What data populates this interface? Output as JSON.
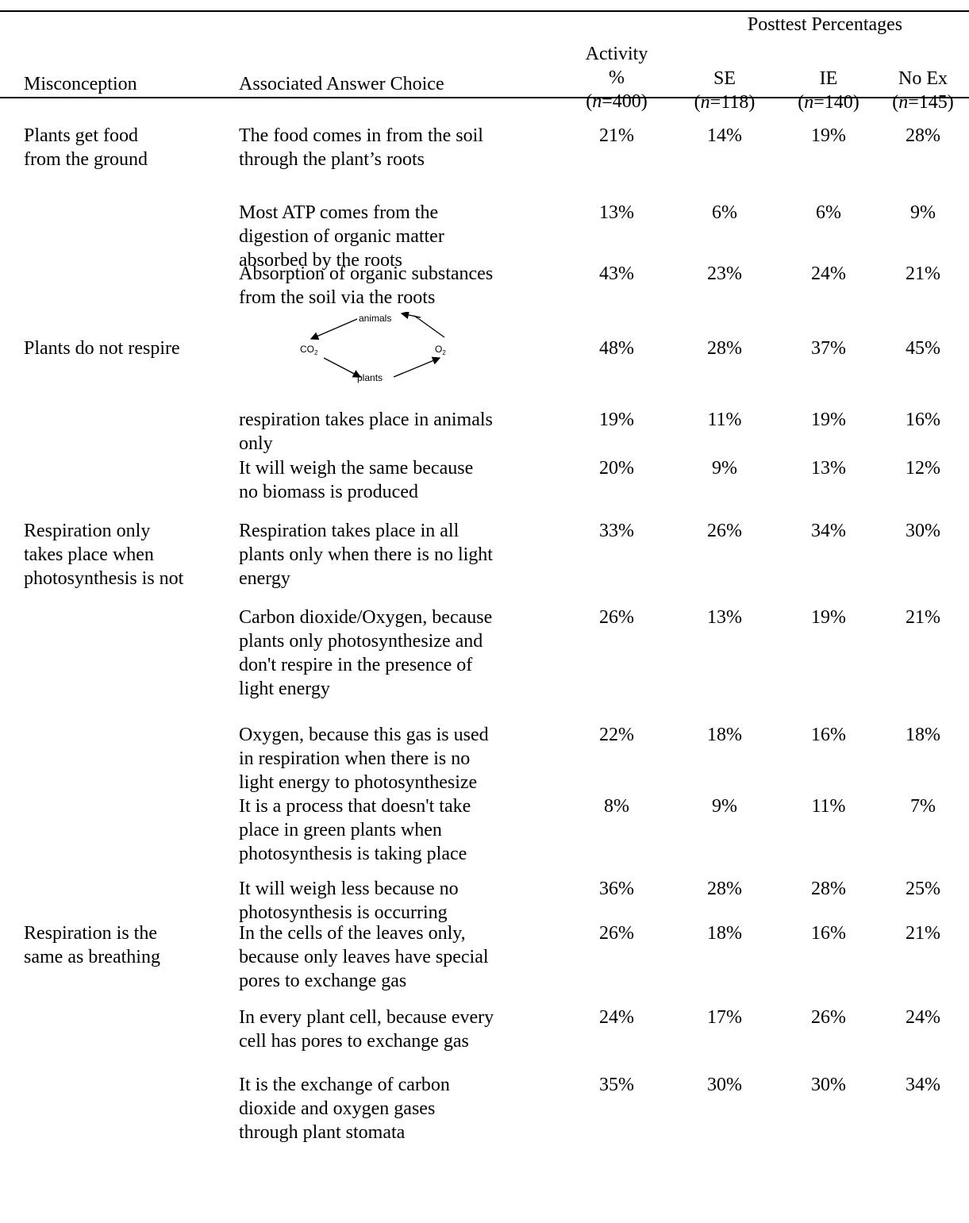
{
  "header": {
    "group_label": "Posttest Percentages",
    "misconception": "Misconception",
    "answer_choice": "Associated Answer Choice",
    "activity": {
      "line1": "Activity",
      "line2": "%",
      "n_var": "n",
      "n_val": "=400"
    },
    "se": {
      "name": "SE",
      "n_var": "n",
      "n_val": "=118"
    },
    "ie": {
      "name": "IE",
      "n_var": "n",
      "n_val": "=140"
    },
    "noex": {
      "name": "No Ex",
      "n_var": "n",
      "n_val": "=145"
    }
  },
  "diagram": {
    "animals": "animals",
    "plants": "plants",
    "co2": "CO",
    "co2_sub": "2",
    "o2": "O",
    "o2_sub": "2"
  },
  "rows": [
    {
      "misconception": [
        "Plants get food",
        "from the ground"
      ],
      "answer": [
        "The food comes in from the soil",
        "through the plant’s roots"
      ],
      "activity": "21%",
      "se": "14%",
      "ie": "19%",
      "noex": "28%"
    },
    {
      "misconception": [],
      "answer": [
        "Most ATP comes from the",
        "digestion of organic matter",
        "absorbed by the roots"
      ],
      "activity": "13%",
      "se": "6%",
      "ie": "6%",
      "noex": "9%"
    },
    {
      "misconception": [],
      "answer": [
        "Absorption of organic substances",
        "from the soil via the roots"
      ],
      "activity": "43%",
      "se": "23%",
      "ie": "24%",
      "noex": "21%"
    },
    {
      "misconception": [
        "Plants do not respire"
      ],
      "answer": [],
      "activity": "48%",
      "se": "28%",
      "ie": "37%",
      "noex": "45%"
    },
    {
      "misconception": [],
      "answer": [
        "respiration takes place in animals",
        "only"
      ],
      "activity": "19%",
      "se": "11%",
      "ie": "19%",
      "noex": "16%"
    },
    {
      "misconception": [],
      "answer": [
        "It will weigh the same because",
        "no biomass is produced"
      ],
      "activity": "20%",
      "se": "9%",
      "ie": "13%",
      "noex": "12%"
    },
    {
      "misconception": [
        "Respiration only",
        "takes place when",
        "photosynthesis is not"
      ],
      "answer": [
        "Respiration takes place in all",
        "plants only when there is no light",
        "energy"
      ],
      "activity": "33%",
      "se": "26%",
      "ie": "34%",
      "noex": "30%"
    },
    {
      "misconception": [],
      "answer": [
        "Carbon dioxide/Oxygen, because",
        "plants only photosynthesize and",
        "don't respire in the presence of",
        "light energy"
      ],
      "activity": "26%",
      "se": "13%",
      "ie": "19%",
      "noex": "21%"
    },
    {
      "misconception": [],
      "answer": [
        "Oxygen, because this gas is used",
        "in respiration when there is no",
        "light energy to photosynthesize"
      ],
      "activity": "22%",
      "se": "18%",
      "ie": "16%",
      "noex": "18%"
    },
    {
      "misconception": [],
      "answer": [
        "It is a process that doesn't take",
        "place in green plants when",
        "photosynthesis is taking place"
      ],
      "activity": "8%",
      "se": "9%",
      "ie": "11%",
      "noex": "7%"
    },
    {
      "misconception": [],
      "answer": [
        "It will weigh less because no",
        "photosynthesis is occurring"
      ],
      "activity": "36%",
      "se": "28%",
      "ie": "28%",
      "noex": "25%"
    },
    {
      "misconception": [
        "Respiration is the",
        "same as breathing"
      ],
      "answer": [
        "In the cells of the leaves only,",
        "because only leaves have special",
        "pores to exchange gas"
      ],
      "activity": "26%",
      "se": "18%",
      "ie": "16%",
      "noex": "21%"
    },
    {
      "misconception": [],
      "answer": [
        "In every plant cell, because every",
        "cell has pores to exchange gas"
      ],
      "activity": "24%",
      "se": "17%",
      "ie": "26%",
      "noex": "24%"
    },
    {
      "misconception": [],
      "answer": [
        "It is the exchange of carbon",
        "dioxide and oxygen gases",
        "through plant stomata"
      ],
      "activity": "35%",
      "se": "30%",
      "ie": "30%",
      "noex": "34%"
    }
  ]
}
